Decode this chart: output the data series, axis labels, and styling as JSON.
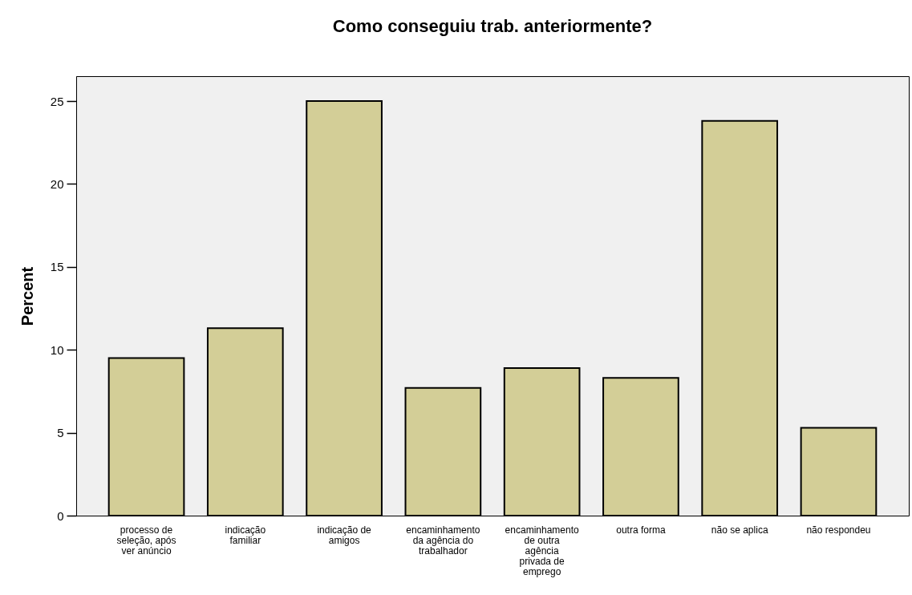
{
  "chart_data": {
    "type": "bar",
    "title": "Como conseguiu trab. anteriormente?",
    "ylabel": "Percent",
    "categories": [
      "processo de seleção, após ver anúncio",
      "indicação familiar",
      "indicação de amigos",
      "encaminhamento da agência do trabalhador",
      "encaminhamento de outra agência privada de emprego",
      "outra forma",
      "não se aplica",
      "não respondeu"
    ],
    "values": [
      9.5,
      11.3,
      25.0,
      7.7,
      8.9,
      8.3,
      23.8,
      5.3
    ],
    "color": "#d3ce97",
    "ylim": [
      0,
      26.5
    ],
    "yticks": [
      0,
      5,
      10,
      15,
      20,
      25
    ]
  }
}
